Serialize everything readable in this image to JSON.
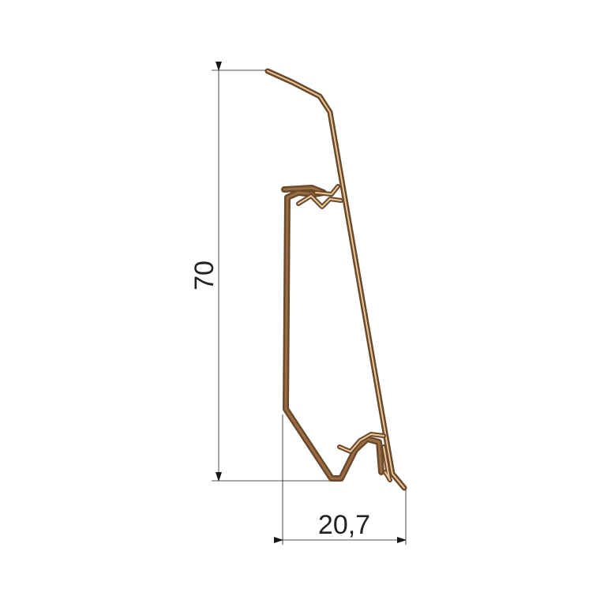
{
  "dimensions": {
    "height_label": "70",
    "width_label": "20,7"
  },
  "colors": {
    "profile_dark": "#6b4a2c",
    "profile_light": "#e9c79a",
    "core": "#9a6d45",
    "dimension": "#1a1a1a"
  },
  "icons": {
    "arrow": "arrowhead"
  }
}
